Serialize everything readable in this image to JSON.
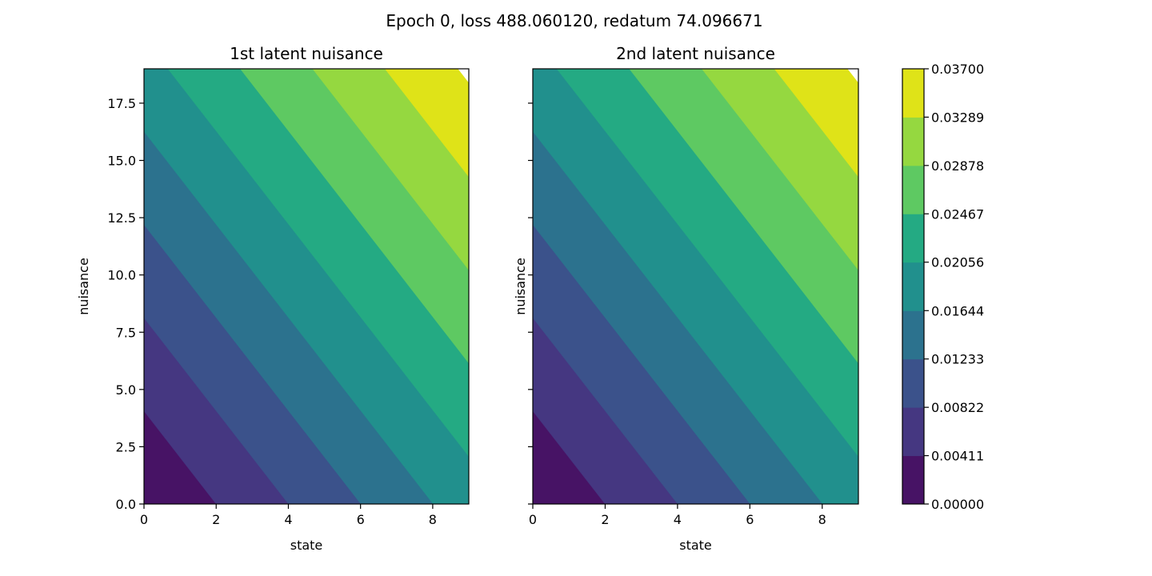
{
  "suptitle": "Epoch 0, loss 488.060120, redatum 74.096671",
  "colors": {
    "levels": [
      "#471365",
      "#453781",
      "#3b528b",
      "#2c728e",
      "#21908d",
      "#24aa83",
      "#5ec962",
      "#95d840",
      "#dfe318"
    ],
    "frame": "#000000"
  },
  "chart_data": [
    {
      "type": "contourf",
      "title": "1st latent nuisance",
      "xlabel": "state",
      "ylabel": "nuisance",
      "xlim": [
        0,
        9
      ],
      "ylim": [
        0,
        19
      ],
      "x_ticks": [
        0,
        2,
        4,
        6,
        8
      ],
      "x_tick_labels": [
        "0",
        "2",
        "4",
        "6",
        "8"
      ],
      "y_ticks": [
        0,
        2.5,
        5,
        7.5,
        10,
        12.5,
        15,
        17.5
      ],
      "y_tick_labels": [
        "0.0",
        "2.5",
        "5.0",
        "7.5",
        "10.0",
        "12.5",
        "15.0",
        "17.5"
      ],
      "field": "value = 0.00205 * x + 0.00101 * y",
      "gradient": {
        "per_state": 0.00205,
        "per_nuisance": 0.00101
      }
    },
    {
      "type": "contourf",
      "title": "2nd latent nuisance",
      "xlabel": "state",
      "ylabel": "nuisance",
      "xlim": [
        0,
        9
      ],
      "ylim": [
        0,
        19
      ],
      "x_ticks": [
        0,
        2,
        4,
        6,
        8
      ],
      "x_tick_labels": [
        "0",
        "2",
        "4",
        "6",
        "8"
      ],
      "y_ticks": [
        0,
        2.5,
        5,
        7.5,
        10,
        12.5,
        15,
        17.5
      ],
      "y_tick_labels": [],
      "field": "value = 0.00205 * x + 0.00101 * y",
      "gradient": {
        "per_state": 0.00205,
        "per_nuisance": 0.00101
      }
    }
  ],
  "colorbar": {
    "levels": [
      0.0,
      0.00411,
      0.00822,
      0.01233,
      0.01644,
      0.02056,
      0.02467,
      0.02878,
      0.03289,
      0.037
    ],
    "tick_labels": [
      "0.00000",
      "0.00411",
      "0.00822",
      "0.01233",
      "0.01644",
      "0.02056",
      "0.02467",
      "0.02878",
      "0.03289",
      "0.03700"
    ]
  }
}
